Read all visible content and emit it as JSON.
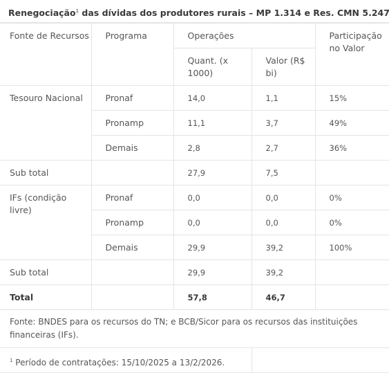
{
  "title": {
    "main": "Renegociação",
    "footnote_mark": "1",
    "rest": " das dívidas dos produtores rurais – MP 1.314 e Res. CMN 5.247"
  },
  "headers": {
    "fonte": "Fonte de Recursos",
    "programa": "Programa",
    "operacoes": "Operações",
    "quant": "Quant. (x 1000)",
    "valor": "Valor (R$ bi)",
    "participacao": "Participação no Valor"
  },
  "tesouro": {
    "label": "Tesouro Nacional",
    "rows": [
      {
        "programa": "Pronaf",
        "quant": "14,0",
        "valor": "1,1",
        "part": "15%"
      },
      {
        "programa": "Pronamp",
        "quant": "11,1",
        "valor": "3,7",
        "part": "49%"
      },
      {
        "programa": "Demais",
        "quant": "2,8",
        "valor": "2,7",
        "part": "36%"
      }
    ],
    "subtotal": {
      "label": "Sub total",
      "quant": "27,9",
      "valor": "7,5"
    }
  },
  "ifs": {
    "label": "IFs (condição livre)",
    "rows": [
      {
        "programa": "Pronaf",
        "quant": "0,0",
        "valor": "0,0",
        "part": "0%"
      },
      {
        "programa": "Pronamp",
        "quant": "0,0",
        "valor": "0,0",
        "part": "0%"
      },
      {
        "programa": "Demais",
        "quant": "29,9",
        "valor": "39,2",
        "part": "100%"
      }
    ],
    "subtotal": {
      "label": "Sub total",
      "quant": "29,9",
      "valor": "39,2"
    }
  },
  "total": {
    "label": "Total",
    "quant": "57,8",
    "valor": "46,7"
  },
  "source": "Fonte: BNDES para os recursos do TN; e BCB/Sicor para os recursos das instituições financeiras (IFs).",
  "note": {
    "mark": "1",
    "text": " Período de contratações: 15/10/2025 a 13/2/2026."
  }
}
